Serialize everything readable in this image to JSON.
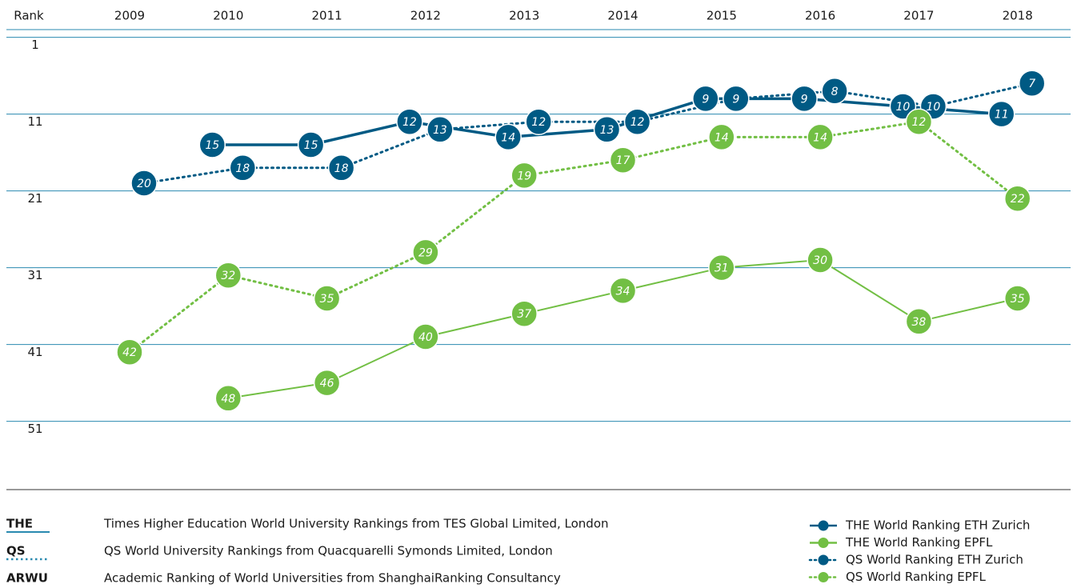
{
  "chart_data": {
    "type": "line",
    "y_label": "Rank",
    "categories": [
      "2009",
      "2010",
      "2011",
      "2012",
      "2013",
      "2014",
      "2015",
      "2016",
      "2017",
      "2018"
    ],
    "ylim": [
      0,
      60
    ],
    "y_inverted": true,
    "yticks": [
      1,
      11,
      21,
      31,
      41,
      51
    ],
    "grid": true,
    "series": [
      {
        "name": "THE World Ranking ETH Zurich",
        "color": "#005a84",
        "style": "solid",
        "values": [
          null,
          15,
          15,
          12,
          14,
          13,
          9,
          9,
          10,
          11
        ]
      },
      {
        "name": "THE World Ranking EPFL",
        "color": "#72bf44",
        "style": "solid",
        "values": [
          null,
          48,
          46,
          40,
          37,
          34,
          31,
          30,
          38,
          35
        ]
      },
      {
        "name": "QS World Ranking ETH Zurich",
        "color": "#005a84",
        "style": "dotted",
        "values": [
          20,
          18,
          18,
          13,
          12,
          12,
          9,
          8,
          10,
          7
        ]
      },
      {
        "name": "QS World Ranking EPFL",
        "color": "#72bf44",
        "style": "dotted",
        "values": [
          42,
          32,
          35,
          29,
          19,
          17,
          14,
          14,
          12,
          22
        ]
      }
    ],
    "notes": [
      {
        "abbr": "THE",
        "text": "Times Higher Education World University Rankings from TES Global Limited, London"
      },
      {
        "abbr": "QS",
        "text": "QS World University Rankings from Quacquarelli Symonds Limited, London"
      },
      {
        "abbr": "ARWU",
        "text": "Academic Ranking of World Universities from ShanghaiRanking Consultancy"
      }
    ]
  }
}
